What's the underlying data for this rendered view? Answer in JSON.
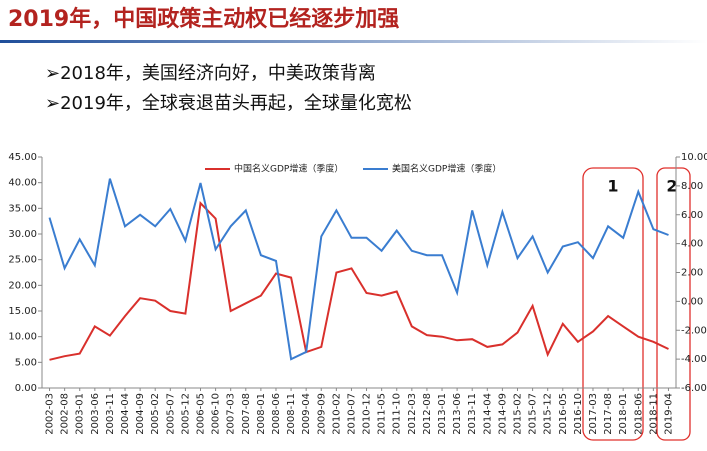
{
  "header": {
    "title": "2019年，中国政策主动权已经逐步加强",
    "bullets": [
      "➢2018年，美国经济向好，中美政策背离",
      "➢2019年，全球衰退苗头再起，全球量化宽松"
    ]
  },
  "chart_data": {
    "type": "line",
    "categories": [
      "2002-03",
      "2002-08",
      "2003-01",
      "2003-06",
      "2003-11",
      "2004-04",
      "2004-09",
      "2005-02",
      "2005-07",
      "2005-12",
      "2006-05",
      "2006-10",
      "2007-03",
      "2007-08",
      "2008-01",
      "2008-06",
      "2008-11",
      "2009-04",
      "2009-09",
      "2010-02",
      "2010-07",
      "2010-12",
      "2011-05",
      "2011-10",
      "2012-03",
      "2012-08",
      "2013-01",
      "2013-06",
      "2013-11",
      "2014-04",
      "2014-09",
      "2015-02",
      "2015-07",
      "2015-12",
      "2016-05",
      "2016-10",
      "2017-03",
      "2017-08",
      "2018-01",
      "2018-06",
      "2018-11",
      "2019-04"
    ],
    "series": [
      {
        "name": "中国名义GDP增速（季度）",
        "color": "#d9302c",
        "values": [
          5.5,
          6.2,
          6.7,
          12,
          10.2,
          14,
          17.5,
          17,
          15,
          14.5,
          36,
          33,
          15,
          16.5,
          18,
          22.3,
          21.5,
          7,
          8,
          22.5,
          23.3,
          18.5,
          18,
          18.8,
          12,
          10.3,
          10,
          9.3,
          9.5,
          8,
          8.5,
          10.8,
          16,
          6.5,
          12.5,
          9,
          11,
          14,
          12,
          10,
          9,
          7.6
        ]
      },
      {
        "name": "美国名义GDP增速（季度）",
        "color": "#3a7dd0",
        "axis": "y2",
        "values": [
          5.8,
          2.3,
          4.3,
          2.5,
          8.5,
          5.2,
          6,
          5.2,
          6.4,
          4.2,
          8.2,
          3.6,
          5.2,
          6.3,
          3.2,
          2.8,
          -4,
          -3.5,
          4.5,
          6.3,
          4.4,
          4.4,
          3.5,
          4.9,
          3.5,
          3.2,
          3.2,
          0.6,
          6.3,
          2.5,
          6.2,
          3,
          4.5,
          2,
          3.8,
          4.1,
          3,
          5.2,
          4.4,
          7.6,
          5,
          4.6
        ]
      }
    ],
    "ylim": [
      0,
      45
    ],
    "yticks": [
      {
        "value": 0,
        "label": "0.00"
      },
      {
        "value": 5,
        "label": "5.00"
      },
      {
        "value": 10,
        "label": "10.00"
      },
      {
        "value": 15,
        "label": "15.00"
      },
      {
        "value": 20,
        "label": "20.00"
      },
      {
        "value": 25,
        "label": "25.00"
      },
      {
        "value": 30,
        "label": "30.00"
      },
      {
        "value": 35,
        "label": "35.00"
      },
      {
        "value": 40,
        "label": "40.00"
      },
      {
        "value": 45,
        "label": "45.00"
      }
    ],
    "y2lim": [
      -6,
      10
    ],
    "y2ticks": [
      {
        "value": -6,
        "label": "-6.00"
      },
      {
        "value": -4,
        "label": "-4.00"
      },
      {
        "value": -2,
        "label": "-2.00"
      },
      {
        "value": 0,
        "label": "0.00"
      },
      {
        "value": 2,
        "label": "2.00"
      },
      {
        "value": 4,
        "label": "4.00"
      },
      {
        "value": 6,
        "label": "6.00"
      },
      {
        "value": 8,
        "label": "8.00"
      },
      {
        "value": 10,
        "label": "10.00"
      }
    ],
    "annotations": [
      "1",
      "2"
    ]
  }
}
